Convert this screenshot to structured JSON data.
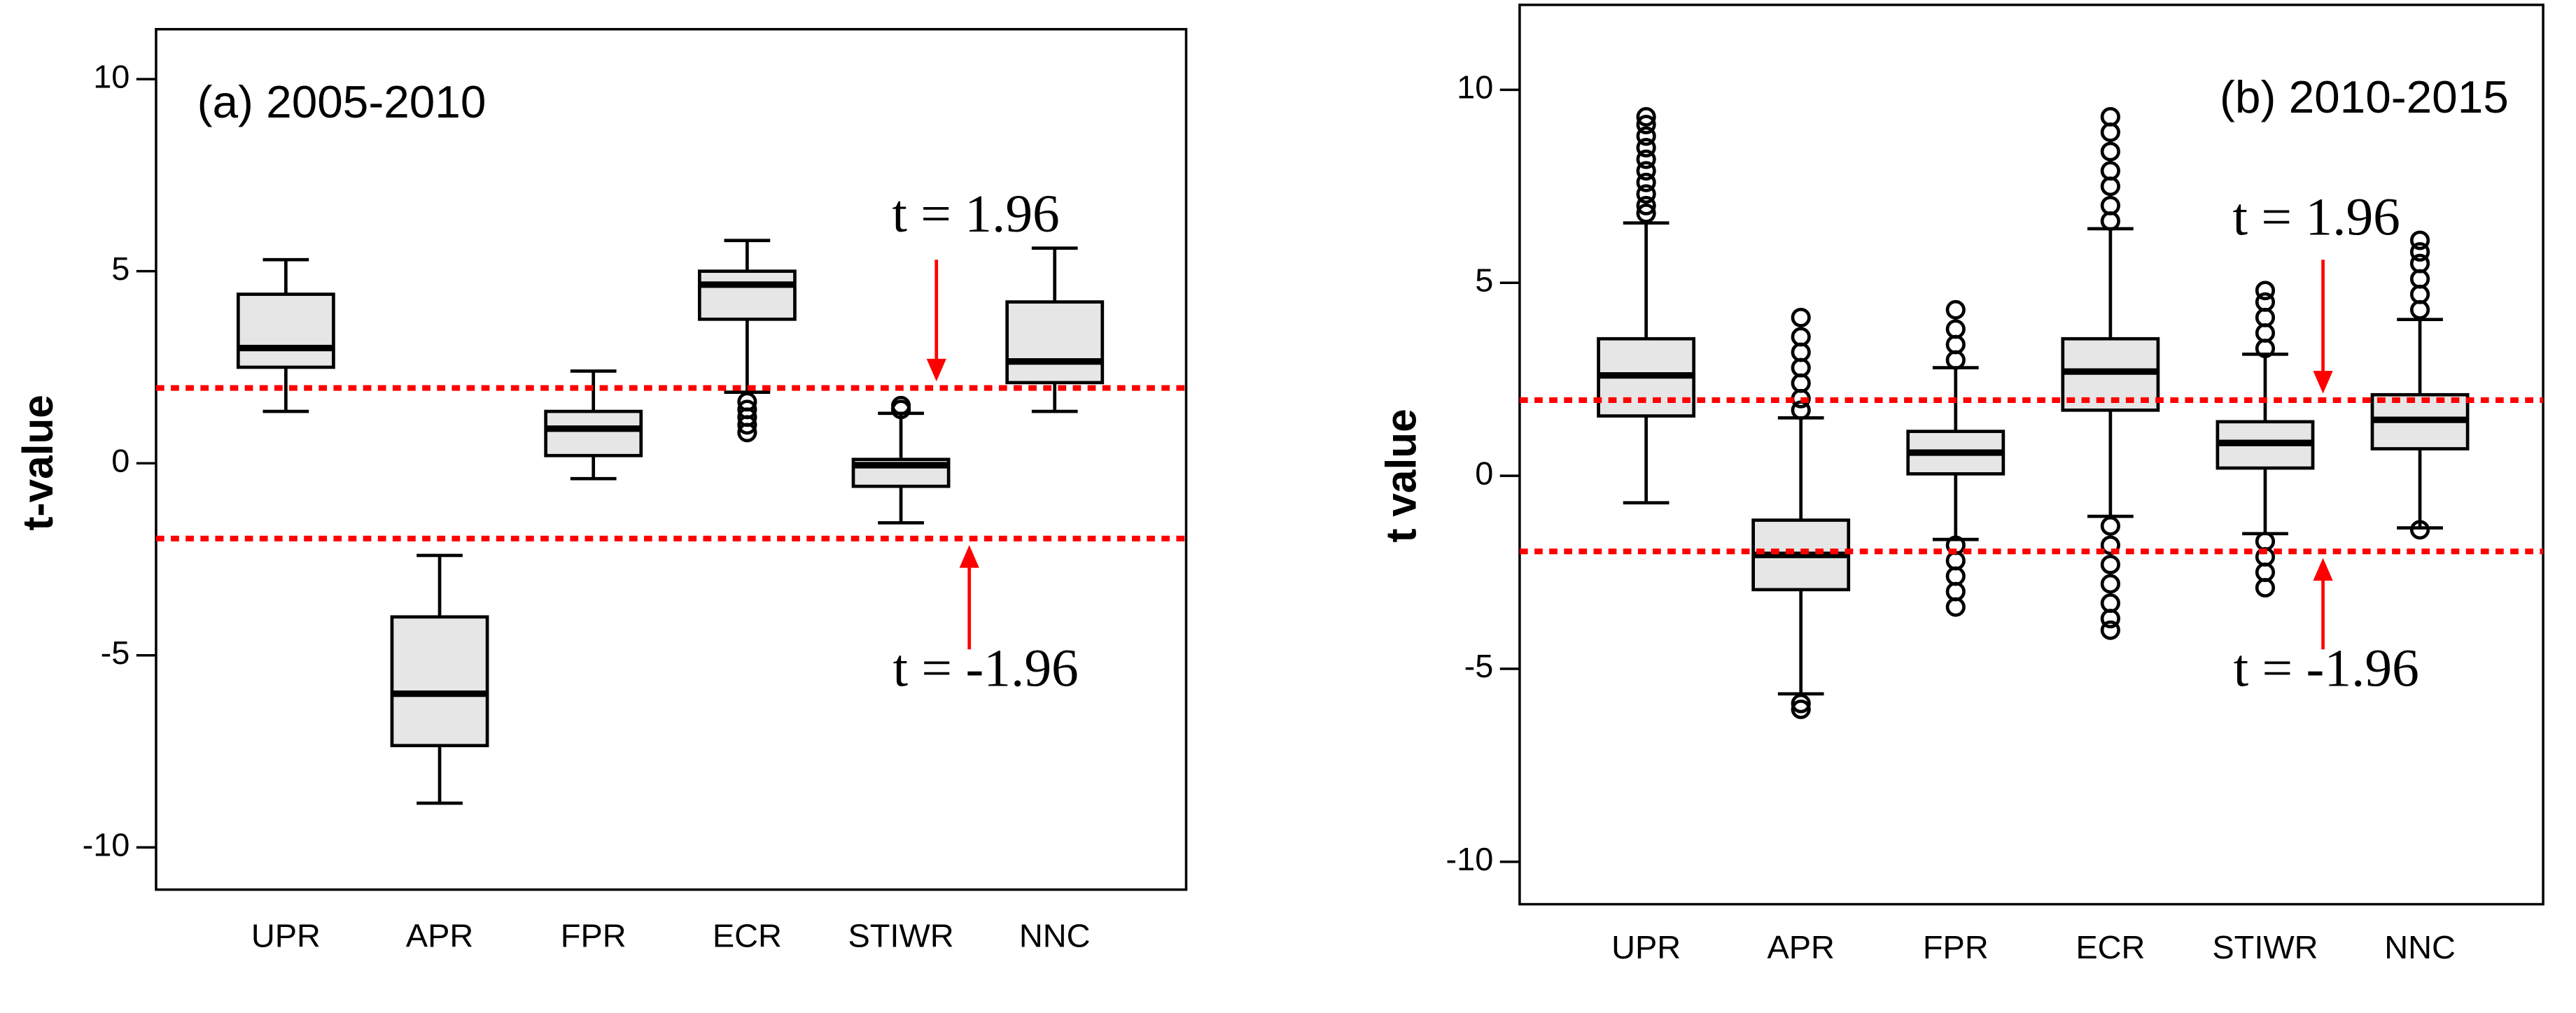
{
  "chart_data": [
    {
      "type": "box",
      "title": "(a) 2005-2010",
      "y_label": "t-value",
      "categories": [
        "UPR",
        "APR",
        "FPR",
        "ECR",
        "STIWR",
        "NNC"
      ],
      "boxes": [
        {
          "min": 1.35,
          "q1": 2.5,
          "median": 3.0,
          "q3": 4.4,
          "max": 5.3,
          "outliers": []
        },
        {
          "min": -8.85,
          "q1": -7.35,
          "median": -6.0,
          "q3": -4.0,
          "max": -2.4,
          "outliers": []
        },
        {
          "min": -0.4,
          "q1": 0.2,
          "median": 0.9,
          "q3": 1.35,
          "max": 2.4,
          "outliers": []
        },
        {
          "min": 1.85,
          "q1": 3.75,
          "median": 4.65,
          "q3": 5.0,
          "max": 5.8,
          "outliers": [
            1.6,
            1.4,
            1.2,
            1.0,
            0.8
          ]
        },
        {
          "min": -1.55,
          "q1": -0.6,
          "median": -0.05,
          "q3": 0.1,
          "max": 1.3,
          "outliers": [
            1.4,
            1.5
          ]
        },
        {
          "min": 1.35,
          "q1": 2.1,
          "median": 2.65,
          "q3": 4.2,
          "max": 5.6,
          "outliers": []
        }
      ],
      "box_color": "#e6e6e6",
      "ylim": [
        -11.1,
        11.3
      ],
      "yticks": [
        -10,
        -5,
        0,
        5,
        10
      ],
      "reference_lines": [
        {
          "value": 1.96,
          "label": "t = 1.96"
        },
        {
          "value": -1.96,
          "label": "t = -1.96"
        }
      ],
      "reference_color": "#ff0000"
    },
    {
      "type": "box",
      "title": "(b) 2010-2015",
      "y_label": "t value",
      "categories": [
        "UPR",
        "APR",
        "FPR",
        "ECR",
        "STIWR",
        "NNC"
      ],
      "boxes": [
        {
          "min": -0.7,
          "q1": 1.55,
          "median": 2.6,
          "q3": 3.55,
          "max": 6.55,
          "outliers": [
            6.8,
            7.0,
            7.3,
            7.6,
            7.9,
            8.2,
            8.5,
            8.8,
            9.1,
            9.3
          ]
        },
        {
          "min": -5.65,
          "q1": -2.95,
          "median": -2.05,
          "q3": -1.15,
          "max": 1.5,
          "outliers": [
            1.7,
            2.0,
            2.4,
            2.8,
            3.2,
            3.6,
            4.1,
            -5.9,
            -6.05
          ]
        },
        {
          "min": -1.65,
          "q1": 0.05,
          "median": 0.6,
          "q3": 1.15,
          "max": 2.8,
          "outliers": [
            3.0,
            3.4,
            3.8,
            4.3,
            -1.8,
            -2.2,
            -2.6,
            -3.0,
            -3.4
          ]
        },
        {
          "min": -1.05,
          "q1": 1.7,
          "median": 2.7,
          "q3": 3.55,
          "max": 6.4,
          "outliers": [
            6.6,
            7.0,
            7.5,
            7.9,
            8.4,
            8.9,
            9.3,
            -1.3,
            -1.8,
            -2.3,
            -2.8,
            -3.3,
            -3.7,
            -4.0
          ]
        },
        {
          "min": -1.5,
          "q1": 0.2,
          "median": 0.85,
          "q3": 1.4,
          "max": 3.15,
          "outliers": [
            3.3,
            3.7,
            4.1,
            4.5,
            4.8,
            -1.7,
            -2.1,
            -2.5,
            -2.9
          ]
        },
        {
          "min": -1.35,
          "q1": 0.7,
          "median": 1.45,
          "q3": 2.1,
          "max": 4.05,
          "outliers": [
            4.3,
            4.7,
            5.1,
            5.5,
            5.8,
            6.1,
            -1.4
          ]
        }
      ],
      "box_color": "#e6e6e6",
      "ylim": [
        -11.1,
        12.2
      ],
      "yticks": [
        -10,
        -5,
        0,
        5,
        10
      ],
      "reference_lines": [
        {
          "value": 1.96,
          "label": "t = 1.96"
        },
        {
          "value": -1.96,
          "label": "t = -1.96"
        }
      ],
      "reference_color": "#ff0000"
    }
  ]
}
